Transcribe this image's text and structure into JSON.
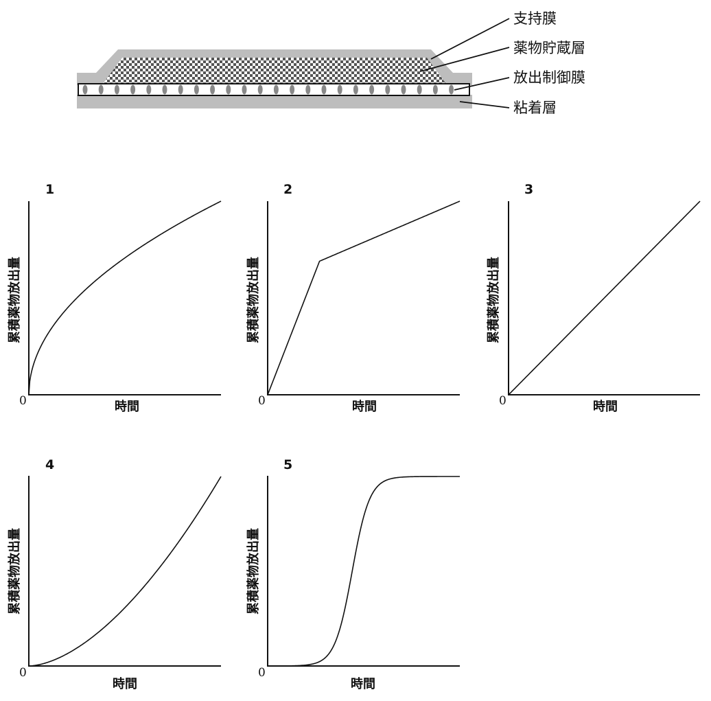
{
  "patch": {
    "labels": [
      "支持膜",
      "薬物貯蔵層",
      "放出制御膜",
      "粘着層"
    ],
    "colors": {
      "backing": "#bdbdbd",
      "adhesive": "#bdbdbd",
      "pore": "#888888",
      "checker": "#555555"
    }
  },
  "panels": [
    {
      "id": "1",
      "ylabel": "累積薬物放出量",
      "xlabel": "時間",
      "origin": "0",
      "curve": "sqrt"
    },
    {
      "id": "2",
      "ylabel": "累積薬物放出量",
      "xlabel": "時間",
      "origin": "0",
      "curve": "biphasic"
    },
    {
      "id": "3",
      "ylabel": "累積薬物放出量",
      "xlabel": "時間",
      "origin": "0",
      "curve": "linear"
    },
    {
      "id": "4",
      "ylabel": "累積薬物放出量",
      "xlabel": "時間",
      "origin": "0",
      "curve": "convex"
    },
    {
      "id": "5",
      "ylabel": "累積薬物放出量",
      "xlabel": "時間",
      "origin": "0",
      "curve": "sigmoid"
    }
  ]
}
